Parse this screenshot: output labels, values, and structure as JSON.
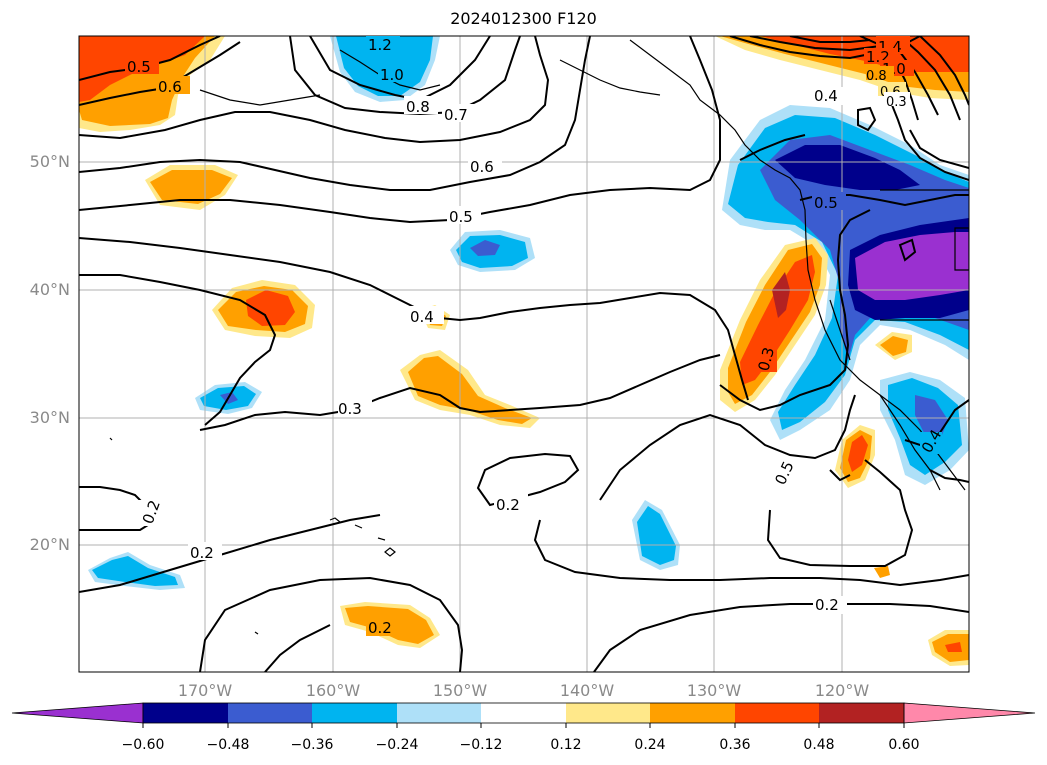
{
  "title": "2024012300 F120",
  "map": {
    "lat_labels": [
      "50°N",
      "40°N",
      "30°N",
      "20°N"
    ],
    "lon_labels": [
      "170°W",
      "160°W",
      "150°W",
      "140°W",
      "130°W",
      "120°W"
    ],
    "contour_labels": [
      "0.5",
      "0.6",
      "1.2",
      "1.0",
      "0.8",
      "0.7",
      "1.4",
      "1.2",
      "1.0",
      "0.8",
      "0.6",
      "0.4",
      "0.3",
      "0.6",
      "0.5",
      "0.5",
      "0.4",
      "0.3",
      "0.3",
      "0.2",
      "0.2",
      "0.2",
      "0.5",
      "0.2",
      "0.2",
      "0.4"
    ],
    "grid": true,
    "filled_field": "anomaly shading",
    "contour_field": "black contours"
  },
  "colorbar": {
    "ticks": [
      "−0.60",
      "−0.48",
      "−0.36",
      "−0.24",
      "−0.12",
      "0.12",
      "0.24",
      "0.36",
      "0.48",
      "0.60"
    ],
    "colors": [
      "#9a30d0",
      "#00008b",
      "#3b5cd0",
      "#00b4f0",
      "#aee0f8",
      "#ffffff",
      "#ffe88a",
      "#ffa000",
      "#ff4500",
      "#b22222",
      "#ff88aa"
    ],
    "extend": "both"
  }
}
